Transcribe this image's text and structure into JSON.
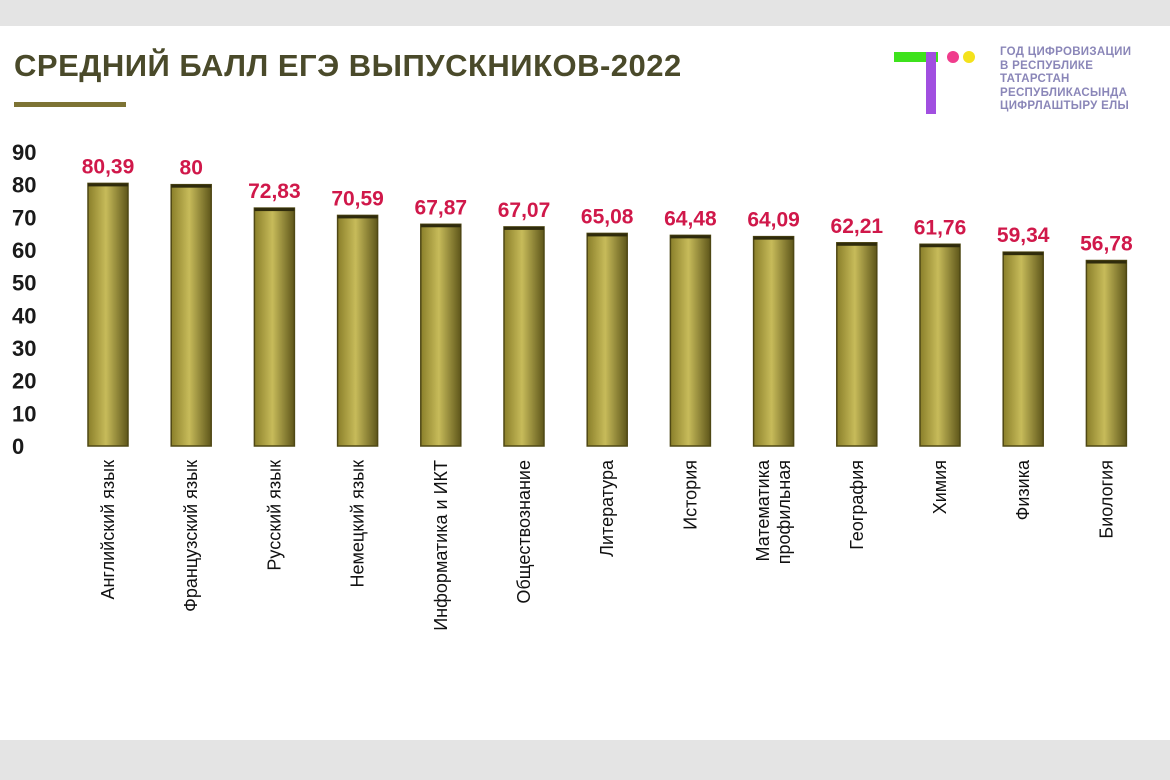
{
  "title": "СРЕДНИЙ БАЛЛ ЕГЭ ВЫПУСКНИКОВ-2022",
  "logo": {
    "lines": [
      "ГОД ЦИФРОВИЗАЦИИ",
      "В РЕСПУБЛИКЕ",
      "ТАТАРСТАН",
      "РЕСПУБЛИКАСЫНДА",
      "ЦИФРЛАШТЫРУ ЕЛЫ"
    ],
    "colors": {
      "green": "#3ee21c",
      "purple": "#a14fe0",
      "pink": "#f03c8c",
      "yellow": "#f4e21c"
    }
  },
  "colors": {
    "bar": "#8a7f2a",
    "bar_light": "#c7bb5a",
    "bar_dark": "#5e561a",
    "value_label": "#d0184a"
  },
  "chart_data": {
    "type": "bar",
    "title": "СРЕДНИЙ БАЛЛ ЕГЭ ВЫПУСКНИКОВ-2022",
    "xlabel": "",
    "ylabel": "",
    "ylim": [
      0,
      90
    ],
    "yticks": [
      "0",
      "10",
      "20",
      "30",
      "40",
      "50",
      "60",
      "70",
      "80",
      "90"
    ],
    "grid": false,
    "categories": [
      "Английский язык",
      "Французский язык",
      "Русский язык",
      "Немецкий язык",
      "Информатика и ИКТ",
      "Обществознание",
      "Литература",
      "История",
      "Математика профильная",
      "География",
      "Химия",
      "Физика",
      "Биология"
    ],
    "values": [
      80.39,
      80,
      72.83,
      70.59,
      67.87,
      67.07,
      65.08,
      64.48,
      64.09,
      62.21,
      61.76,
      59.34,
      56.78
    ],
    "value_labels": [
      "80,39",
      "80",
      "72,83",
      "70,59",
      "67,87",
      "67,07",
      "65,08",
      "64,48",
      "64,09",
      "62,21",
      "61,76",
      "59,34",
      "56,78"
    ]
  }
}
